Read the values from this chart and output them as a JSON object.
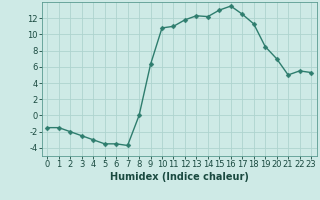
{
  "x": [
    0,
    1,
    2,
    3,
    4,
    5,
    6,
    7,
    8,
    9,
    10,
    11,
    12,
    13,
    14,
    15,
    16,
    17,
    18,
    19,
    20,
    21,
    22,
    23
  ],
  "y": [
    -1.5,
    -1.5,
    -2,
    -2.5,
    -3,
    -3.5,
    -3.5,
    -3.7,
    0,
    6.3,
    10.8,
    11,
    11.8,
    12.3,
    12.2,
    13,
    13.5,
    12.5,
    11.3,
    8.5,
    7,
    5,
    5.5,
    5.3
  ],
  "line_color": "#2e7d6e",
  "marker_color": "#2e7d6e",
  "bg_color": "#ceeae6",
  "grid_color": "#aed4cf",
  "xlabel": "Humidex (Indice chaleur)",
  "ylim": [
    -5,
    14
  ],
  "xlim": [
    -0.5,
    23.5
  ],
  "yticks": [
    -4,
    -2,
    0,
    2,
    4,
    6,
    8,
    10,
    12
  ],
  "xticks": [
    0,
    1,
    2,
    3,
    4,
    5,
    6,
    7,
    8,
    9,
    10,
    11,
    12,
    13,
    14,
    15,
    16,
    17,
    18,
    19,
    20,
    21,
    22,
    23
  ],
  "xlabel_fontsize": 7,
  "tick_fontsize": 6,
  "line_width": 1.0,
  "marker_size": 2.5
}
